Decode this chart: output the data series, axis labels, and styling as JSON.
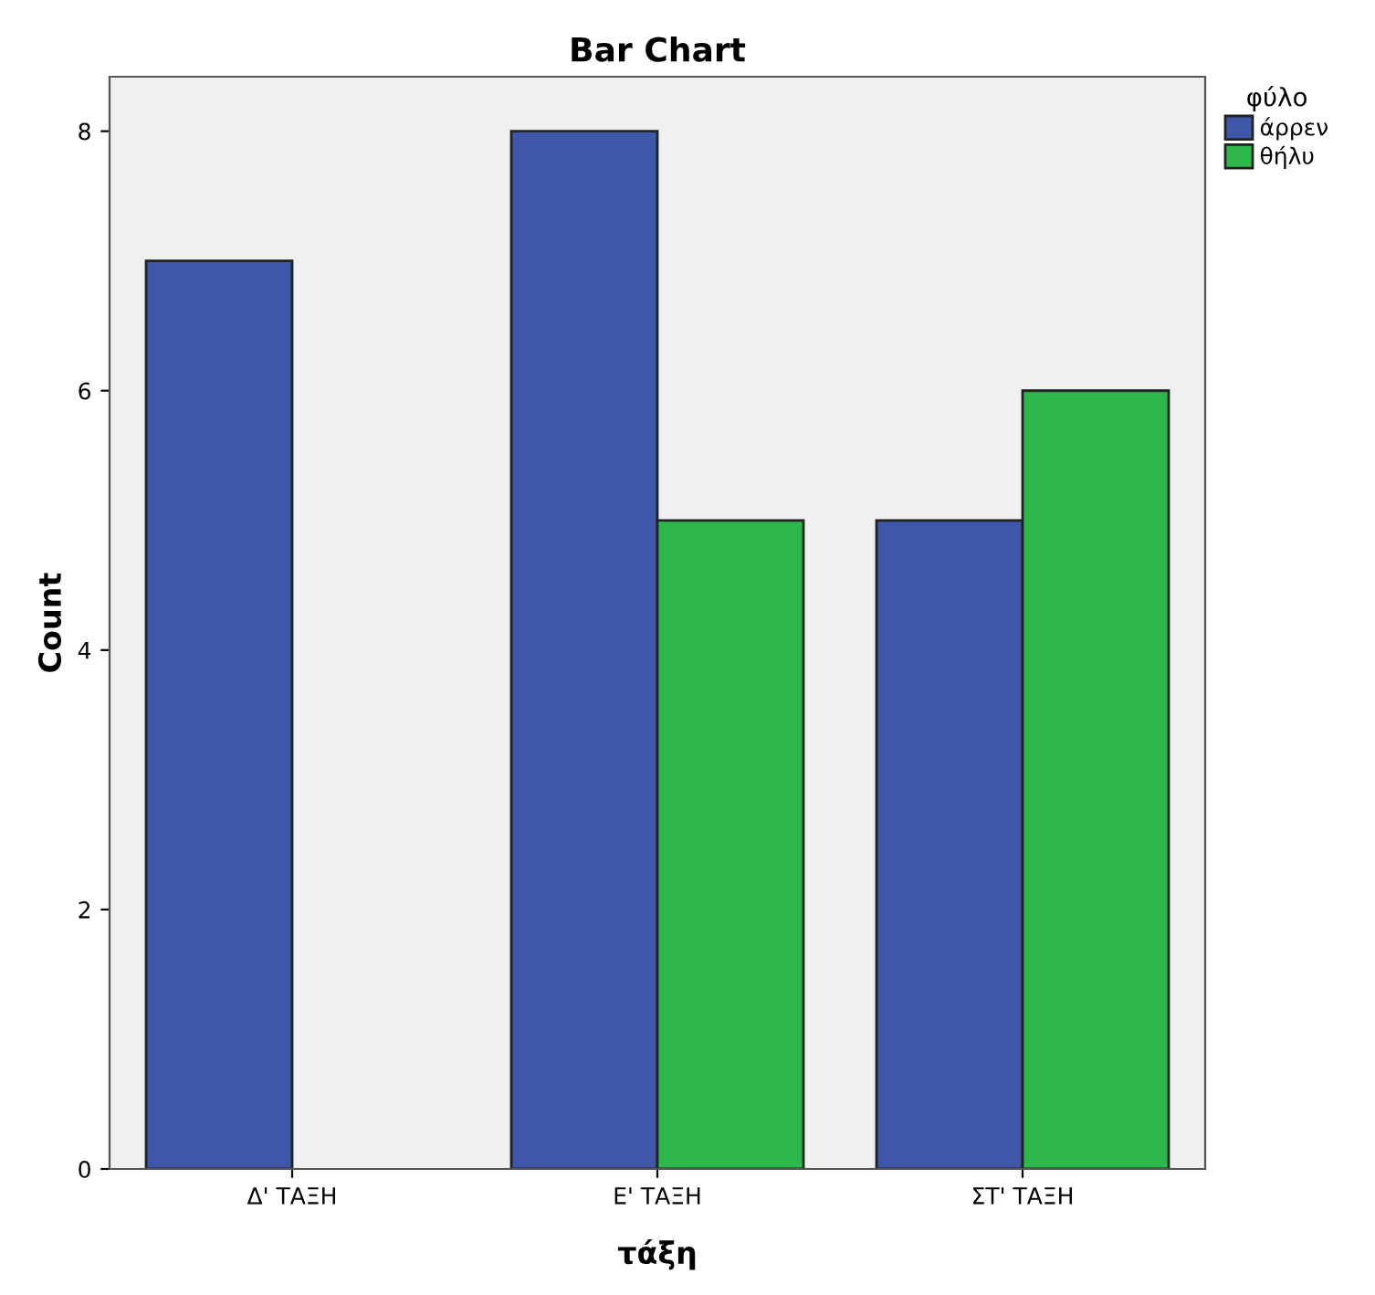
{
  "chart_data": {
    "type": "bar",
    "title": "Bar Chart",
    "xlabel": "τάξη",
    "ylabel": "Count",
    "legend_title": "φύλο",
    "categories": [
      "Δ' ΤΑΞΗ",
      "Ε' ΤΑΞΗ",
      "ΣΤ' ΤΑΞΗ"
    ],
    "series": [
      {
        "name": "άρρεν",
        "color": "#3e57a9",
        "values": [
          7,
          8,
          5
        ]
      },
      {
        "name": "θήλυ",
        "color": "#2eb84b",
        "values": [
          null,
          5,
          6
        ]
      }
    ],
    "ylim": [
      0,
      8.42
    ],
    "yticks": [
      0,
      2,
      4,
      6,
      8
    ],
    "grid": false,
    "legend": "right"
  }
}
